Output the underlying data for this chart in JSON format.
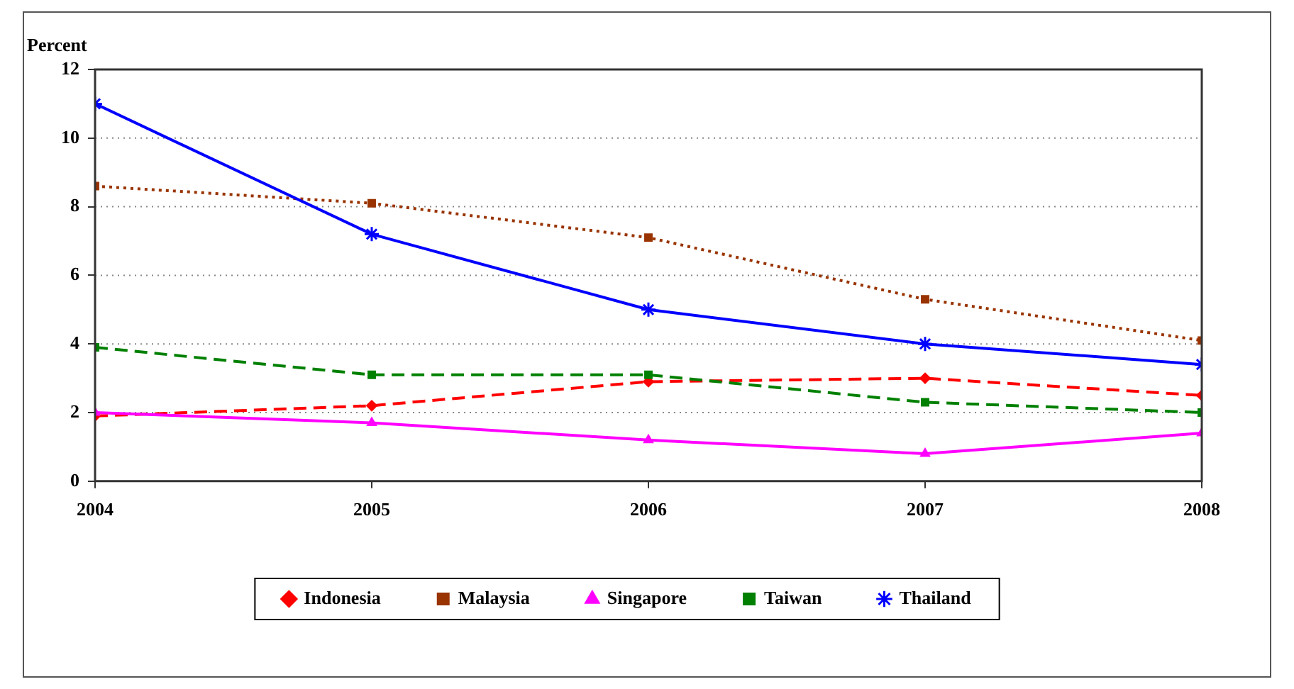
{
  "chart_data": {
    "type": "line",
    "ylabel": "Percent",
    "x": [
      2004,
      2005,
      2006,
      2007,
      2008
    ],
    "xlim": [
      2004,
      2008
    ],
    "xticks": [
      2004,
      2005,
      2006,
      2007,
      2008
    ],
    "ylim": [
      0,
      12
    ],
    "yticks": [
      0,
      2,
      4,
      6,
      8,
      10,
      12
    ],
    "grid": "y",
    "legend": "bottom",
    "series": [
      {
        "name": "Indonesia",
        "color": "#ff0000",
        "values": [
          1.9,
          2.2,
          2.9,
          3.0,
          2.5
        ],
        "marker": "diamond",
        "line_style": "dashed"
      },
      {
        "name": "Malaysia",
        "color": "#993300",
        "values": [
          8.6,
          8.1,
          7.1,
          5.3,
          4.1
        ],
        "marker": "square",
        "line_style": "dotted"
      },
      {
        "name": "Singapore",
        "color": "#ff00ff",
        "values": [
          2.0,
          1.7,
          1.2,
          0.8,
          1.4
        ],
        "marker": "triangle",
        "line_style": "solid"
      },
      {
        "name": "Taiwan",
        "color": "#008000",
        "values": [
          3.9,
          3.1,
          3.1,
          2.3,
          2.0
        ],
        "marker": "square",
        "line_style": "dashed"
      },
      {
        "name": "Thailand",
        "color": "#0000ff",
        "values": [
          11.0,
          7.2,
          5.0,
          4.0,
          3.4
        ],
        "marker": "cross",
        "line_style": "solid"
      }
    ]
  }
}
